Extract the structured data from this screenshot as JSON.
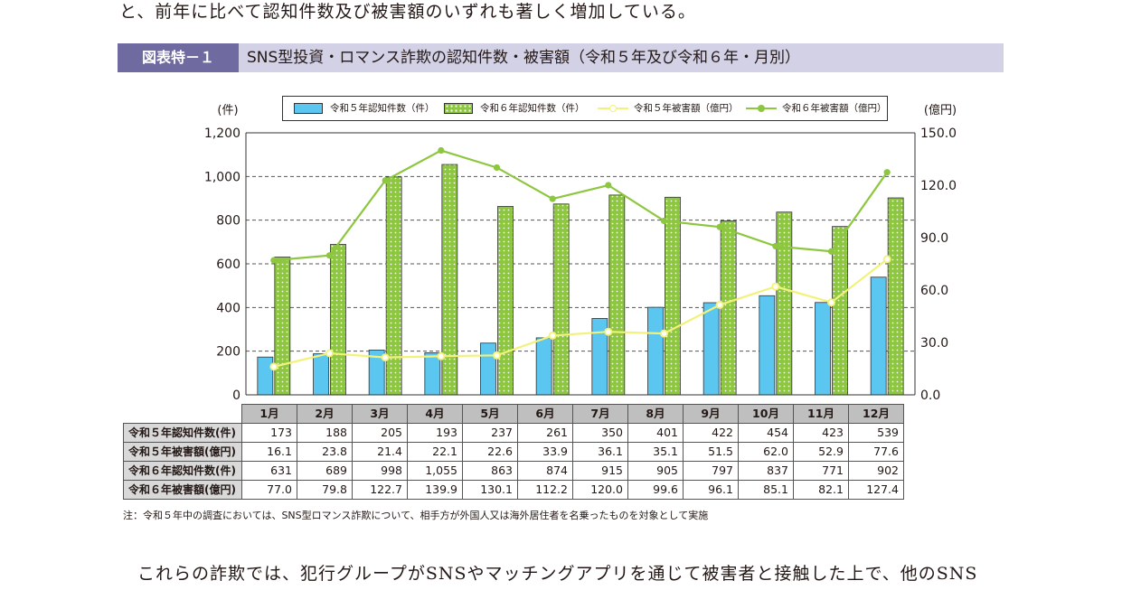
{
  "top_text": "と、前年に比べて認知件数及び被害額のいずれも著しく増加している。",
  "title": {
    "tag": "図表特－１",
    "text": "SNS型投資・ロマンス詐欺の認知件数・被害額（令和５年及び令和６年・月別）"
  },
  "legend": {
    "items": [
      "令和５年認知件数（件）",
      "令和６年認知件数（件）",
      "令和５年被害額（億円）",
      "令和６年被害額（億円）"
    ]
  },
  "colors": {
    "bar_2023": "#5bc6ef",
    "bar_2024": "#8dc63f",
    "line_2023": "#f2f27a",
    "line_2024": "#8dc63f",
    "title_tag": "#6f6a9f",
    "title_bar": "#d3d1e6"
  },
  "chart_data": {
    "type": "bar",
    "categories": [
      "1月",
      "2月",
      "3月",
      "4月",
      "5月",
      "6月",
      "7月",
      "8月",
      "9月",
      "10月",
      "11月",
      "12月"
    ],
    "ylabel_left": "(件)",
    "ylabel_right": "(億円)",
    "ylim_left": [
      0,
      1200
    ],
    "ylim_right": [
      0,
      150
    ],
    "yticks_left": [
      "0",
      "200",
      "400",
      "600",
      "800",
      "1,000",
      "1,200"
    ],
    "yticks_right": [
      "0.0",
      "30.0",
      "60.0",
      "90.0",
      "120.0",
      "150.0"
    ],
    "grid": "dashed horizontal",
    "legend_position": "top",
    "series": [
      {
        "name": "令和５年認知件数（件）",
        "type": "bar",
        "axis": "left",
        "values": [
          173,
          188,
          205,
          193,
          237,
          261,
          350,
          401,
          422,
          454,
          423,
          539
        ]
      },
      {
        "name": "令和６年認知件数（件）",
        "type": "bar",
        "axis": "left",
        "values": [
          631,
          689,
          998,
          1055,
          863,
          874,
          915,
          905,
          797,
          837,
          771,
          902
        ]
      },
      {
        "name": "令和５年被害額（億円）",
        "type": "line",
        "axis": "right",
        "values": [
          16.1,
          23.8,
          21.4,
          22.1,
          22.6,
          33.9,
          36.1,
          35.1,
          51.5,
          62.0,
          52.9,
          77.6
        ]
      },
      {
        "name": "令和６年被害額（億円）",
        "type": "line",
        "axis": "right",
        "values": [
          77.0,
          79.8,
          122.7,
          139.9,
          130.1,
          112.2,
          120.0,
          99.6,
          96.1,
          85.1,
          82.1,
          127.4
        ]
      }
    ]
  },
  "table": {
    "columns": [
      "1月",
      "2月",
      "3月",
      "4月",
      "5月",
      "6月",
      "7月",
      "8月",
      "9月",
      "10月",
      "11月",
      "12月"
    ],
    "rows": [
      {
        "label": "令和５年認知件数(件)",
        "values": [
          "173",
          "188",
          "205",
          "193",
          "237",
          "261",
          "350",
          "401",
          "422",
          "454",
          "423",
          "539"
        ]
      },
      {
        "label": "令和５年被害額(億円)",
        "values": [
          "16.1",
          "23.8",
          "21.4",
          "22.1",
          "22.6",
          "33.9",
          "36.1",
          "35.1",
          "51.5",
          "62.0",
          "52.9",
          "77.6"
        ]
      },
      {
        "label": "令和６年認知件数(件)",
        "values": [
          "631",
          "689",
          "998",
          "1,055",
          "863",
          "874",
          "915",
          "905",
          "797",
          "837",
          "771",
          "902"
        ]
      },
      {
        "label": "令和６年被害額(億円)",
        "values": [
          "77.0",
          "79.8",
          "122.7",
          "139.9",
          "130.1",
          "112.2",
          "120.0",
          "99.6",
          "96.1",
          "85.1",
          "82.1",
          "127.4"
        ]
      }
    ]
  },
  "note": "注：令和５年中の調査においては、SNS型ロマンス詐欺について、相手方が外国人又は海外居住者を名乗ったものを対象として実施",
  "bottom_text": "これらの詐欺では、犯行グループがSNSやマッチングアプリを通じて被害者と接触した上で、他のSNS"
}
